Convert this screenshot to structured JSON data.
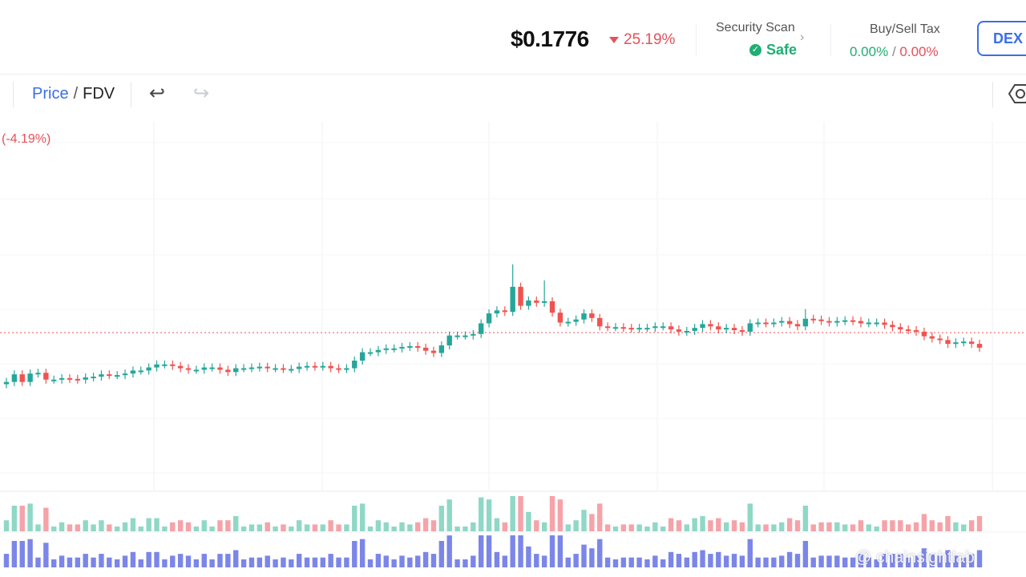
{
  "header": {
    "price": "$0.1776",
    "change": "25.19%",
    "security_title": "Security Scan",
    "security_status": "Safe",
    "tax_title": "Buy/Sell Tax",
    "buy_tax": "0.00%",
    "tax_sep": "/",
    "sell_tax": "0.00%",
    "dex_label": "DEX I"
  },
  "toolbar": {
    "price_label": "Price",
    "fdv_label": "FDV",
    "sep": "/"
  },
  "chart": {
    "change_label": "(-4.19%)"
  },
  "watermark": "@ chainsightlab",
  "colors": {
    "up": "#26a69a",
    "down": "#ef5350",
    "accent": "#3c6ee6"
  },
  "chart_data": {
    "type": "candlestick",
    "candles": [
      [
        172,
        182,
        172,
        183,
        184,
        175,
        175,
        177,
        176,
        175,
        178,
        179,
        182,
        181,
        181,
        183,
        187,
        187,
        191,
        195,
        195,
        193,
        190,
        188,
        188,
        191,
        191,
        188,
        185,
        190,
        190,
        191,
        192,
        190,
        190,
        189,
        189,
        192,
        193,
        192,
        193,
        190,
        189,
        190,
        200,
        211,
        211,
        214,
        216,
        216,
        218,
        219,
        217,
        213,
        210,
        220,
        233,
        233,
        233,
        235,
        249,
        262,
        266,
        264,
        297,
        272,
        279,
        276,
        278,
        263,
        250,
        251,
        254,
        262,
        256,
        245,
        244,
        244,
        243,
        242,
        243,
        243,
        245,
        245,
        241,
        238,
        239,
        243,
        248,
        245,
        241,
        243,
        240,
        238,
        249,
        250,
        249,
        250,
        252,
        248,
        245,
        255,
        254,
        252,
        250,
        252,
        253,
        252,
        249,
        250,
        250,
        247,
        244,
        241,
        240,
        238,
        232,
        229,
        227,
        222,
        224,
        225,
        222,
        217
      ]
    ]
  }
}
